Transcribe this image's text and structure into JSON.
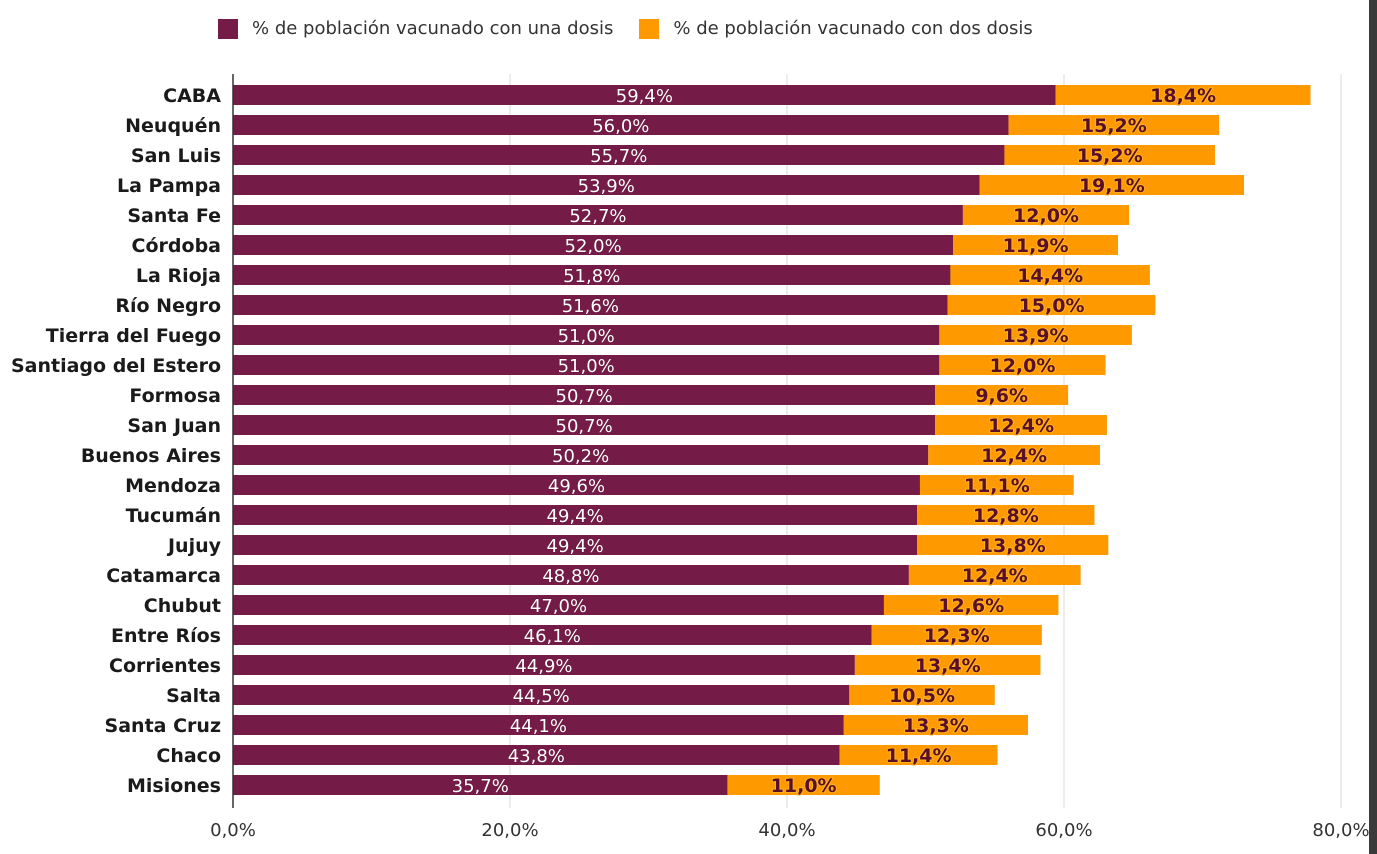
{
  "chart_data": {
    "type": "bar",
    "orientation": "horizontal",
    "stacked": true,
    "categories": [
      "CABA",
      "Neuquén",
      "San Luis",
      "La Pampa",
      "Santa Fe",
      "Córdoba",
      "La Rioja",
      "Río Negro",
      "Tierra del Fuego",
      "Santiago del Estero",
      "Formosa",
      "San Juan",
      "Buenos Aires",
      "Mendoza",
      "Tucumán",
      "Jujuy",
      "Catamarca",
      "Chubut",
      "Entre Ríos",
      "Corrientes",
      "Salta",
      "Santa Cruz",
      "Chaco",
      "Misiones"
    ],
    "series": [
      {
        "name": "% de población vacunado con una dosis",
        "color": "#741b47",
        "values": [
          59.4,
          56.0,
          55.7,
          53.9,
          52.7,
          52.0,
          51.8,
          51.6,
          51.0,
          51.0,
          50.7,
          50.7,
          50.2,
          49.6,
          49.4,
          49.4,
          48.8,
          47.0,
          46.1,
          44.9,
          44.5,
          44.1,
          43.8,
          35.7
        ],
        "labels": [
          "59,4%",
          "56,0%",
          "55,7%",
          "53,9%",
          "52,7%",
          "52,0%",
          "51,8%",
          "51,6%",
          "51,0%",
          "51,0%",
          "50,7%",
          "50,7%",
          "50,2%",
          "49,6%",
          "49,4%",
          "49,4%",
          "48,8%",
          "47,0%",
          "46,1%",
          "44,9%",
          "44,5%",
          "44,1%",
          "43,8%",
          "35,7%"
        ]
      },
      {
        "name": "% de población vacunado con dos dosis",
        "color": "#ff9900",
        "values": [
          18.4,
          15.2,
          15.2,
          19.1,
          12.0,
          11.9,
          14.4,
          15.0,
          13.9,
          12.0,
          9.6,
          12.4,
          12.4,
          11.1,
          12.8,
          13.8,
          12.4,
          12.6,
          12.3,
          13.4,
          10.5,
          13.3,
          11.4,
          11.0
        ],
        "labels": [
          "18,4%",
          "15,2%",
          "15,2%",
          "19,1%",
          "12,0%",
          "11,9%",
          "14,4%",
          "15,0%",
          "13,9%",
          "12,0%",
          "9,6%",
          "12,4%",
          "12,4%",
          "11,1%",
          "12,8%",
          "13,8%",
          "12,4%",
          "12,6%",
          "12,3%",
          "13,4%",
          "10,5%",
          "13,3%",
          "11,4%",
          "11,0%"
        ]
      }
    ],
    "xlim": [
      0,
      80
    ],
    "xticks": [
      0,
      20,
      40,
      60,
      80
    ],
    "xtick_labels": [
      "0,0%",
      "20,0%",
      "40,0%",
      "60,0%",
      "80,0%"
    ],
    "grid": true,
    "legend": "top"
  }
}
